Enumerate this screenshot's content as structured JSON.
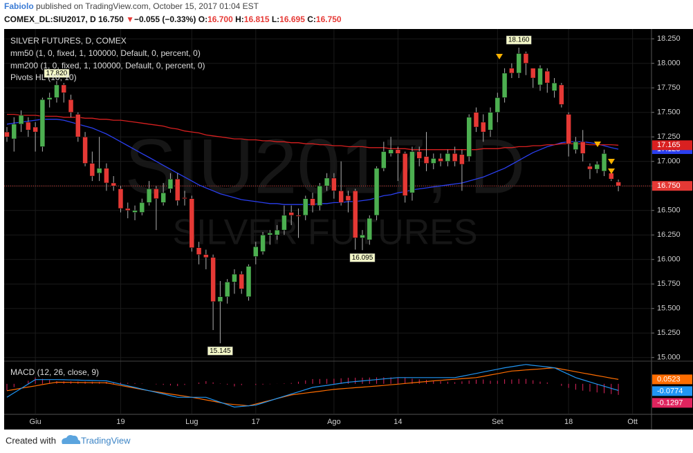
{
  "header": {
    "author": "Fabiolo",
    "published": "published on TradingView.com, October 15, 2017 01:04 EST",
    "symbol": "COMEX_DL:SIU2017, D",
    "price": "16.750",
    "change_arrow": "▼",
    "change": "−0.055 (−0.33%)",
    "ohlc": [
      {
        "key": "O:",
        "value": "16.700"
      },
      {
        "key": "H:",
        "value": "16.815"
      },
      {
        "key": "L:",
        "value": "16.695"
      },
      {
        "key": "C:",
        "value": "16.750"
      }
    ]
  },
  "chart_data": {
    "type": "candlestick",
    "title": "SILVER FUTURES, D, COMEX",
    "watermark": {
      "symbol": "SIU2017, D",
      "name": "SILVER FUTURES"
    },
    "categories": [
      null,
      null,
      null,
      null,
      "Giu",
      null,
      null,
      null,
      null,
      null,
      null,
      null,
      null,
      null,
      null,
      null,
      "19",
      null,
      null,
      null,
      null,
      null,
      null,
      null,
      null,
      null,
      "Lug",
      null,
      null,
      null,
      null,
      null,
      null,
      null,
      null,
      "17",
      null,
      null,
      null,
      null,
      null,
      null,
      null,
      null,
      null,
      null,
      "Ago",
      null,
      null,
      null,
      null,
      null,
      null,
      null,
      null,
      "14",
      null,
      null,
      null,
      null,
      null,
      null,
      null,
      null,
      null,
      null,
      null,
      null,
      null,
      "Set",
      null,
      null,
      null,
      null,
      null,
      null,
      null,
      null,
      null,
      "18",
      null,
      null,
      null,
      null,
      null,
      null,
      null,
      null,
      "Ott"
    ],
    "open": [
      17.3,
      17.23,
      17.38,
      17.4,
      17.35,
      17.15,
      17.63,
      17.65,
      17.78,
      17.63,
      17.48,
      17.25,
      16.98,
      16.88,
      16.93,
      16.78,
      16.72,
      16.52,
      16.48,
      16.48,
      16.58,
      16.72,
      16.58,
      16.72,
      16.82,
      16.63,
      16.62,
      16.12,
      16.05,
      16.02,
      15.57,
      15.62,
      15.77,
      15.85,
      15.62,
      16.03,
      16.08,
      16.25,
      16.25,
      16.3,
      16.48,
      16.45,
      16.45,
      16.62,
      16.55,
      16.75,
      16.83,
      16.7,
      16.65,
      16.7,
      16.22,
      16.2,
      16.45,
      16.93,
      17.08,
      17.12,
      17.08,
      16.68,
      17.1,
      17.05,
      16.98,
      17.03,
      17.0,
      17.08,
      17.07,
      17.05,
      17.5,
      17.4,
      17.32,
      17.5,
      17.65,
      17.95,
      17.9,
      18.1,
      17.95,
      17.78,
      17.92,
      17.72,
      17.78,
      17.48,
      17.12,
      17.2,
      16.95,
      16.92,
      16.9,
      16.88,
      16.79,
      null,
      null
    ],
    "high": [
      17.35,
      17.45,
      17.52,
      17.45,
      17.4,
      17.65,
      17.7,
      17.82,
      17.8,
      17.68,
      17.5,
      17.3,
      17.1,
      17.25,
      16.98,
      16.85,
      16.75,
      16.58,
      16.55,
      16.62,
      16.8,
      16.75,
      16.78,
      16.88,
      16.88,
      16.7,
      16.65,
      16.18,
      16.1,
      16.05,
      15.78,
      15.8,
      15.9,
      15.88,
      15.95,
      16.18,
      16.28,
      16.3,
      16.35,
      16.55,
      16.55,
      16.52,
      16.65,
      16.68,
      16.78,
      16.88,
      16.88,
      17.0,
      16.7,
      16.72,
      16.3,
      16.45,
      16.95,
      17.2,
      17.25,
      17.15,
      17.1,
      17.15,
      17.15,
      17.3,
      17.08,
      17.08,
      17.12,
      17.15,
      17.12,
      17.48,
      17.55,
      17.48,
      17.55,
      17.7,
      17.95,
      18.0,
      18.16,
      18.12,
      17.95,
      17.98,
      17.95,
      17.85,
      17.8,
      17.5,
      17.25,
      17.32,
      16.98,
      17.0,
      17.12,
      16.92,
      16.815,
      null,
      null
    ],
    "low": [
      17.2,
      17.1,
      17.3,
      17.25,
      17.1,
      17.1,
      17.55,
      17.6,
      17.6,
      17.45,
      17.2,
      16.95,
      16.8,
      16.8,
      16.7,
      16.7,
      16.48,
      16.42,
      16.4,
      16.45,
      16.55,
      16.3,
      16.55,
      16.68,
      16.55,
      16.55,
      16.08,
      15.95,
      15.9,
      15.28,
      15.145,
      15.55,
      15.65,
      15.65,
      15.58,
      15.95,
      16.05,
      16.15,
      16.2,
      16.25,
      16.35,
      16.22,
      16.4,
      16.48,
      16.5,
      16.7,
      16.62,
      16.55,
      16.48,
      16.1,
      16.095,
      16.15,
      16.4,
      16.9,
      17.05,
      16.8,
      16.58,
      16.6,
      16.95,
      16.9,
      16.92,
      16.95,
      16.95,
      16.95,
      16.7,
      17.0,
      17.3,
      17.2,
      17.25,
      17.4,
      17.6,
      17.85,
      17.85,
      17.88,
      17.75,
      17.72,
      17.7,
      17.65,
      17.55,
      17.05,
      17.08,
      17.0,
      16.82,
      16.88,
      16.85,
      16.8,
      16.695,
      null,
      null
    ],
    "close": [
      17.25,
      17.38,
      17.47,
      17.32,
      17.3,
      17.63,
      17.65,
      17.78,
      17.7,
      17.5,
      17.25,
      16.98,
      16.85,
      16.93,
      16.78,
      16.75,
      16.52,
      16.5,
      16.5,
      16.58,
      16.72,
      16.62,
      16.68,
      16.82,
      16.6,
      16.62,
      16.12,
      16.05,
      16.02,
      15.57,
      15.62,
      15.77,
      15.85,
      15.7,
      15.93,
      16.13,
      16.25,
      16.27,
      16.3,
      16.45,
      16.45,
      16.44,
      16.62,
      16.55,
      16.75,
      16.83,
      16.7,
      16.58,
      16.6,
      16.22,
      16.25,
      16.42,
      16.93,
      17.1,
      17.12,
      17.08,
      16.65,
      17.1,
      17.03,
      16.98,
      17.03,
      17.0,
      17.08,
      17.0,
      16.97,
      17.45,
      17.35,
      17.3,
      17.5,
      17.65,
      17.9,
      17.9,
      18.1,
      18.0,
      17.85,
      17.95,
      17.8,
      17.8,
      17.58,
      17.18,
      17.2,
      17.08,
      16.92,
      16.97,
      17.08,
      16.82,
      16.75,
      null,
      null
    ],
    "up_color": "#4caf50",
    "down_color": "#e53935",
    "wick_color": "#b0b0b0",
    "ylim": [
      14.97,
      18.35
    ],
    "yticks": [
      {
        "value": 15,
        "label": "15.000"
      },
      {
        "value": 15.25,
        "label": "15.250"
      },
      {
        "value": 15.5,
        "label": "15.500"
      },
      {
        "value": 15.75,
        "label": "15.750"
      },
      {
        "value": 16,
        "label": "16.000"
      },
      {
        "value": 16.25,
        "label": "16.250"
      },
      {
        "value": 16.5,
        "label": "16.500"
      },
      {
        "value": 16.75,
        "label": "16.750"
      },
      {
        "value": 17,
        "label": "17.000"
      },
      {
        "value": 17.25,
        "label": "17.250"
      },
      {
        "value": 17.5,
        "label": "17.500"
      },
      {
        "value": 17.75,
        "label": "17.750"
      },
      {
        "value": 18,
        "label": "18.000"
      },
      {
        "value": 18.25,
        "label": "18.250"
      }
    ],
    "grid": true,
    "grid_color": "#1b1b1b",
    "last_price": {
      "value": 16.75,
      "label": "16.750",
      "color": "#e53935"
    },
    "series": [
      {
        "name": "mm50 (1, 0, fixed, 1, 100000, Default, 0, percent, 0)",
        "color": "#2a3ff0",
        "values": [
          17.38,
          17.39,
          17.4,
          17.41,
          17.42,
          17.43,
          17.43,
          17.43,
          17.42,
          17.4,
          17.38,
          17.36,
          17.34,
          17.31,
          17.28,
          17.24,
          17.2,
          17.16,
          17.12,
          17.08,
          17.04,
          17.0,
          16.96,
          16.92,
          16.88,
          16.84,
          16.8,
          16.76,
          16.73,
          16.7,
          16.67,
          16.65,
          16.63,
          16.61,
          16.6,
          16.59,
          16.58,
          16.57,
          16.57,
          16.56,
          16.56,
          16.56,
          16.56,
          16.56,
          16.57,
          16.57,
          16.58,
          16.58,
          16.59,
          16.59,
          16.6,
          16.61,
          16.63,
          16.65,
          16.66,
          16.68,
          16.69,
          16.71,
          16.72,
          16.73,
          16.74,
          16.75,
          16.76,
          16.77,
          16.78,
          16.8,
          16.82,
          16.84,
          16.87,
          16.9,
          16.93,
          16.97,
          17.01,
          17.05,
          17.09,
          17.12,
          17.15,
          17.17,
          17.19,
          17.2,
          17.2,
          17.2,
          17.19,
          17.18,
          17.16,
          17.14,
          17.125,
          null,
          null
        ]
      },
      {
        "name": "mm200 (1, 0, fixed, 1, 100000, Default, 0, percent, 0)",
        "color": "#d92020",
        "values": [
          17.48,
          17.48,
          17.47,
          17.47,
          17.47,
          17.46,
          17.46,
          17.46,
          17.45,
          17.45,
          17.45,
          17.44,
          17.44,
          17.43,
          17.43,
          17.42,
          17.42,
          17.41,
          17.4,
          17.39,
          17.38,
          17.37,
          17.36,
          17.34,
          17.33,
          17.31,
          17.3,
          17.29,
          17.27,
          17.26,
          17.25,
          17.24,
          17.23,
          17.23,
          17.22,
          17.22,
          17.21,
          17.21,
          17.2,
          17.2,
          17.19,
          17.19,
          17.18,
          17.18,
          17.17,
          17.17,
          17.16,
          17.16,
          17.15,
          17.15,
          17.15,
          17.14,
          17.14,
          17.14,
          17.13,
          17.13,
          17.13,
          17.12,
          17.12,
          17.12,
          17.12,
          17.12,
          17.12,
          17.12,
          17.12,
          17.12,
          17.12,
          17.13,
          17.13,
          17.13,
          17.14,
          17.14,
          17.15,
          17.15,
          17.16,
          17.16,
          17.17,
          17.17,
          17.18,
          17.18,
          17.18,
          17.18,
          17.17,
          17.17,
          17.17,
          17.17,
          17.165,
          null,
          null
        ]
      }
    ],
    "pivots": {
      "name": "Pivots HL (10, 10)",
      "labels": [
        {
          "value": 17.82,
          "label": "17.820"
        },
        {
          "value": 18.16,
          "label": "18.160"
        },
        {
          "value": 15.145,
          "label": "15.145"
        },
        {
          "value": 16.095,
          "label": "16.095"
        }
      ]
    },
    "macd": {
      "name": "MACD (12, 26, close, 9)",
      "ylim": [
        -0.35,
        0.25
      ],
      "macd": {
        "color": "#2196f3",
        "values": [
          -0.158,
          -0.106,
          -0.054,
          -0.002,
          0.05,
          0.05,
          0.05,
          0.05,
          0.048,
          0.046,
          0.044,
          0.041,
          0.039,
          0.037,
          0.035,
          0.016,
          -0.004,
          -0.023,
          -0.042,
          -0.062,
          -0.081,
          -0.1,
          -0.119,
          -0.139,
          -0.158,
          -0.158,
          -0.158,
          -0.158,
          -0.158,
          -0.187,
          -0.216,
          -0.244,
          -0.273,
          -0.265,
          -0.258,
          -0.25,
          -0.224,
          -0.198,
          -0.172,
          -0.146,
          -0.12,
          -0.094,
          -0.068,
          -0.042,
          -0.03,
          -0.018,
          -0.005,
          0.007,
          0.019,
          0.027,
          0.034,
          0.042,
          0.05,
          0.058,
          0.065,
          0.073,
          0.073,
          0.073,
          0.073,
          0.073,
          0.073,
          0.073,
          0.073,
          0.073,
          0.089,
          0.106,
          0.122,
          0.139,
          0.155,
          0.171,
          0.188,
          0.201,
          0.214,
          0.227,
          0.217,
          0.208,
          0.198,
          0.188,
          0.15,
          0.111,
          0.073,
          0.047,
          0.021,
          -0.004,
          -0.028,
          -0.053,
          -0.0774,
          null,
          null
        ]
      },
      "signal": {
        "color": "#ff6d00",
        "values": [
          -0.081,
          -0.067,
          -0.052,
          -0.038,
          -0.024,
          -0.009,
          0.005,
          0.019,
          0.018,
          0.017,
          0.016,
          0.015,
          0.014,
          0.013,
          0.012,
          -0.004,
          -0.019,
          -0.035,
          -0.05,
          -0.066,
          -0.081,
          -0.094,
          -0.107,
          -0.12,
          -0.132,
          -0.145,
          -0.158,
          -0.173,
          -0.189,
          -0.204,
          -0.22,
          -0.235,
          -0.243,
          -0.25,
          -0.258,
          -0.237,
          -0.215,
          -0.194,
          -0.173,
          -0.151,
          -0.13,
          -0.119,
          -0.108,
          -0.098,
          -0.087,
          -0.076,
          -0.065,
          -0.058,
          -0.052,
          -0.045,
          -0.039,
          -0.032,
          -0.026,
          -0.019,
          -0.011,
          -0.004,
          0.004,
          0.012,
          0.02,
          0.027,
          0.035,
          0.041,
          0.048,
          0.054,
          0.06,
          0.067,
          0.073,
          0.088,
          0.104,
          0.119,
          0.135,
          0.15,
          0.156,
          0.163,
          0.169,
          0.175,
          0.182,
          0.188,
          0.173,
          0.158,
          0.142,
          0.127,
          0.112,
          0.097,
          0.082,
          0.067,
          0.0523,
          null,
          null
        ]
      },
      "histogram": {
        "color": "#e0245e",
        "values": [
          -0.077,
          -0.039,
          -0.002,
          0.036,
          0.074,
          0.059,
          0.045,
          0.031,
          0.03,
          0.029,
          0.028,
          0.026,
          0.025,
          0.024,
          0.023,
          0.02,
          0.015,
          0.012,
          0.008,
          0.004,
          0,
          -0.006,
          -0.012,
          -0.019,
          -0.026,
          -0.013,
          0,
          0.015,
          0.031,
          0.017,
          0.004,
          -0.009,
          -0.03,
          -0.015,
          0,
          -0.013,
          -0.009,
          -0.004,
          0.001,
          0.005,
          0.01,
          0.025,
          0.04,
          0.056,
          0.057,
          0.058,
          0.06,
          0.065,
          0.071,
          0.072,
          0.073,
          0.074,
          0.076,
          0.077,
          0.076,
          0.077,
          0.069,
          0.061,
          0.053,
          0.046,
          0.038,
          0.032,
          0.025,
          0.019,
          0.029,
          0.039,
          0.049,
          0.051,
          0.036,
          0.036,
          0.053,
          0.051,
          0.058,
          0.058,
          0.042,
          0.026,
          0.016,
          0,
          -0.023,
          -0.047,
          -0.069,
          -0.08,
          -0.091,
          -0.101,
          -0.11,
          -0.12,
          -0.1297,
          null,
          null
        ]
      }
    }
  },
  "footer": {
    "created": "Created with",
    "brand": "TradingView"
  }
}
